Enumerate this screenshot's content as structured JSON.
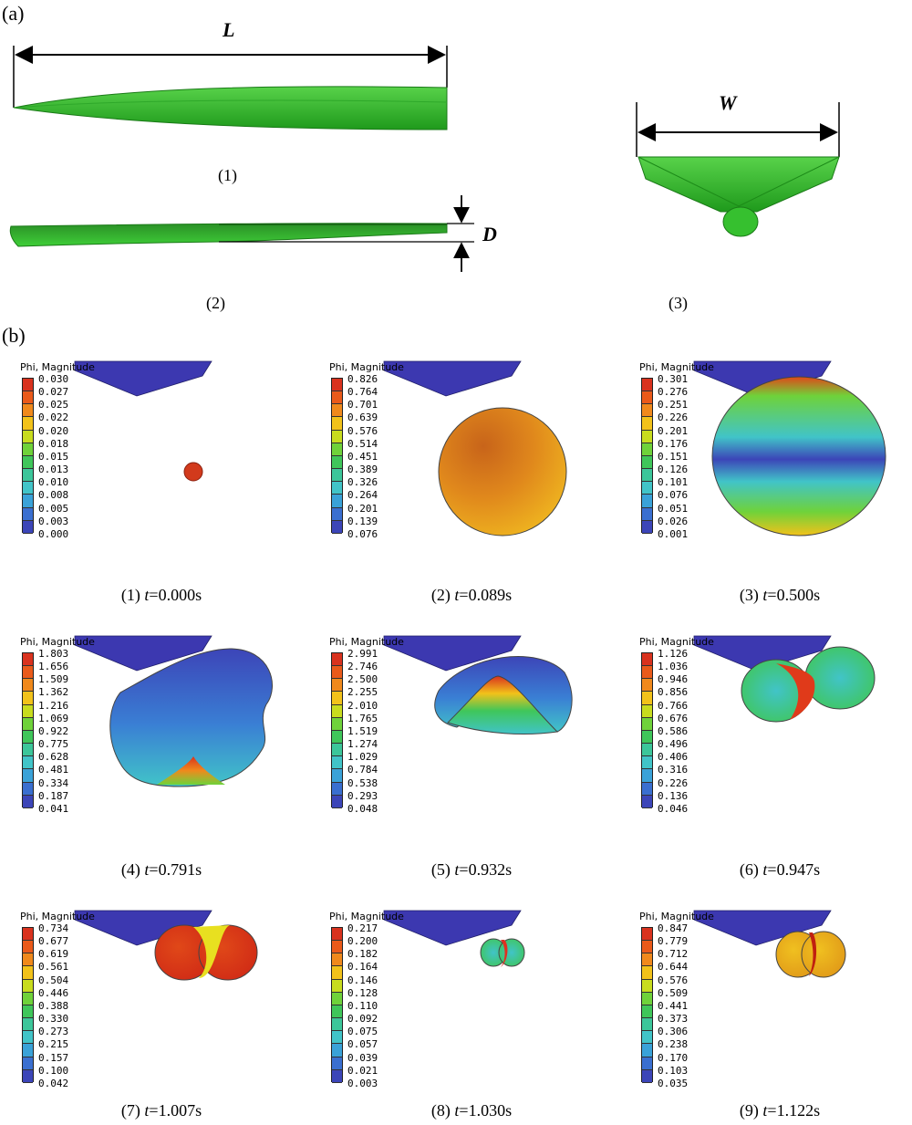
{
  "part_a": {
    "label": "(a)",
    "dim_length": "L",
    "dim_width": "W",
    "dim_depth": "D",
    "view_captions": [
      "(1)",
      "(2)",
      "(3)"
    ],
    "hull_color": "#2fbf2a"
  },
  "part_b": {
    "label": "(b)",
    "legend_title": "Phi, Magnitude",
    "colormap": [
      "#d9321e",
      "#ea5a1a",
      "#f0891c",
      "#f2c21a",
      "#c8dc1e",
      "#6fd23a",
      "#3fc65a",
      "#3cc69a",
      "#41c4c8",
      "#3aa2d8",
      "#3a6fd0",
      "#3c45b8"
    ],
    "panels": [
      {
        "caption_num": "(1)",
        "caption_t": "t",
        "caption_val": "=0.000s",
        "ticks": [
          "0.030",
          "0.027",
          "0.025",
          "0.022",
          "0.020",
          "0.018",
          "0.015",
          "0.013",
          "0.010",
          "0.008",
          "0.005",
          "0.003",
          "0.000"
        ]
      },
      {
        "caption_num": "(2)",
        "caption_t": "t",
        "caption_val": "=0.089s",
        "ticks": [
          "0.826",
          "0.764",
          "0.701",
          "0.639",
          "0.576",
          "0.514",
          "0.451",
          "0.389",
          "0.326",
          "0.264",
          "0.201",
          "0.139",
          "0.076"
        ]
      },
      {
        "caption_num": "(3)",
        "caption_t": "t",
        "caption_val": "=0.500s",
        "ticks": [
          "0.301",
          "0.276",
          "0.251",
          "0.226",
          "0.201",
          "0.176",
          "0.151",
          "0.126",
          "0.101",
          "0.076",
          "0.051",
          "0.026",
          "0.001"
        ]
      },
      {
        "caption_num": "(4)",
        "caption_t": "t",
        "caption_val": "=0.791s",
        "ticks": [
          "1.803",
          "1.656",
          "1.509",
          "1.362",
          "1.216",
          "1.069",
          "0.922",
          "0.775",
          "0.628",
          "0.481",
          "0.334",
          "0.187",
          "0.041"
        ]
      },
      {
        "caption_num": "(5)",
        "caption_t": "t",
        "caption_val": "=0.932s",
        "ticks": [
          "2.991",
          "2.746",
          "2.500",
          "2.255",
          "2.010",
          "1.765",
          "1.519",
          "1.274",
          "1.029",
          "0.784",
          "0.538",
          "0.293",
          "0.048"
        ]
      },
      {
        "caption_num": "(6)",
        "caption_t": "t",
        "caption_val": "=0.947s",
        "ticks": [
          "1.126",
          "1.036",
          "0.946",
          "0.856",
          "0.766",
          "0.676",
          "0.586",
          "0.496",
          "0.406",
          "0.316",
          "0.226",
          "0.136",
          "0.046"
        ]
      },
      {
        "caption_num": "(7)",
        "caption_t": "t",
        "caption_val": "=1.007s",
        "ticks": [
          "0.734",
          "0.677",
          "0.619",
          "0.561",
          "0.504",
          "0.446",
          "0.388",
          "0.330",
          "0.273",
          "0.215",
          "0.157",
          "0.100",
          "0.042"
        ]
      },
      {
        "caption_num": "(8)",
        "caption_t": "t",
        "caption_val": "=1.030s",
        "ticks": [
          "0.217",
          "0.200",
          "0.182",
          "0.164",
          "0.146",
          "0.128",
          "0.110",
          "0.092",
          "0.075",
          "0.057",
          "0.039",
          "0.021",
          "0.003"
        ]
      },
      {
        "caption_num": "(9)",
        "caption_t": "t",
        "caption_val": "=1.122s",
        "ticks": [
          "0.847",
          "0.779",
          "0.712",
          "0.644",
          "0.576",
          "0.509",
          "0.441",
          "0.373",
          "0.306",
          "0.238",
          "0.170",
          "0.103",
          "0.035"
        ]
      }
    ]
  }
}
